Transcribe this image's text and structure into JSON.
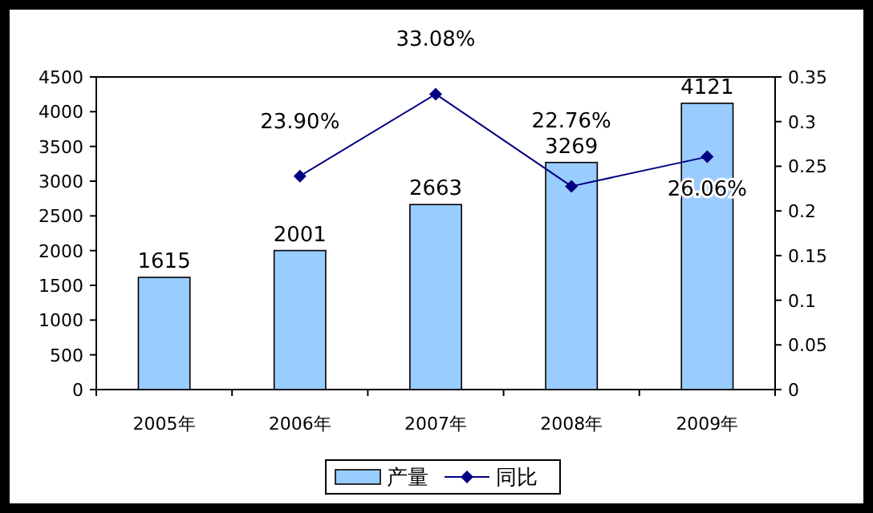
{
  "chart_data": {
    "type": "bar",
    "categories": [
      "2005年",
      "2006年",
      "2007年",
      "2008年",
      "2009年"
    ],
    "series": [
      {
        "name": "产量",
        "type": "bar",
        "color": "#99ccff",
        "values": [
          1615,
          2001,
          2663,
          3269,
          4121
        ],
        "value_labels": [
          "1615",
          "2001",
          "2663",
          "3269",
          "4121"
        ]
      },
      {
        "name": "同比",
        "type": "line",
        "axis": "y2",
        "color": "#000080",
        "values": [
          null,
          0.239,
          0.3308,
          0.2276,
          0.2606
        ],
        "value_labels": [
          null,
          "23.90%",
          "33.08%",
          "22.76%",
          "26.06%"
        ]
      }
    ],
    "ylim": [
      0,
      4500
    ],
    "yticks": [
      0,
      500,
      1000,
      1500,
      2000,
      2500,
      3000,
      3500,
      4000,
      4500
    ],
    "y2lim": [
      0,
      0.35
    ],
    "y2ticks": [
      0,
      {
        "value": 0.05,
        "label": "0.05"
      },
      {
        "value": 0.1,
        "label": "0.1"
      },
      {
        "value": 0.15,
        "label": "0.15"
      },
      {
        "value": 0.2,
        "label": "0.2"
      },
      {
        "value": 0.25,
        "label": "0.25"
      },
      {
        "value": 0.3,
        "label": "0.3"
      },
      {
        "value": 0.35,
        "label": "0.35"
      }
    ],
    "marker": "diamond",
    "line_style": "solid",
    "legend": "bottom",
    "grid": false
  }
}
